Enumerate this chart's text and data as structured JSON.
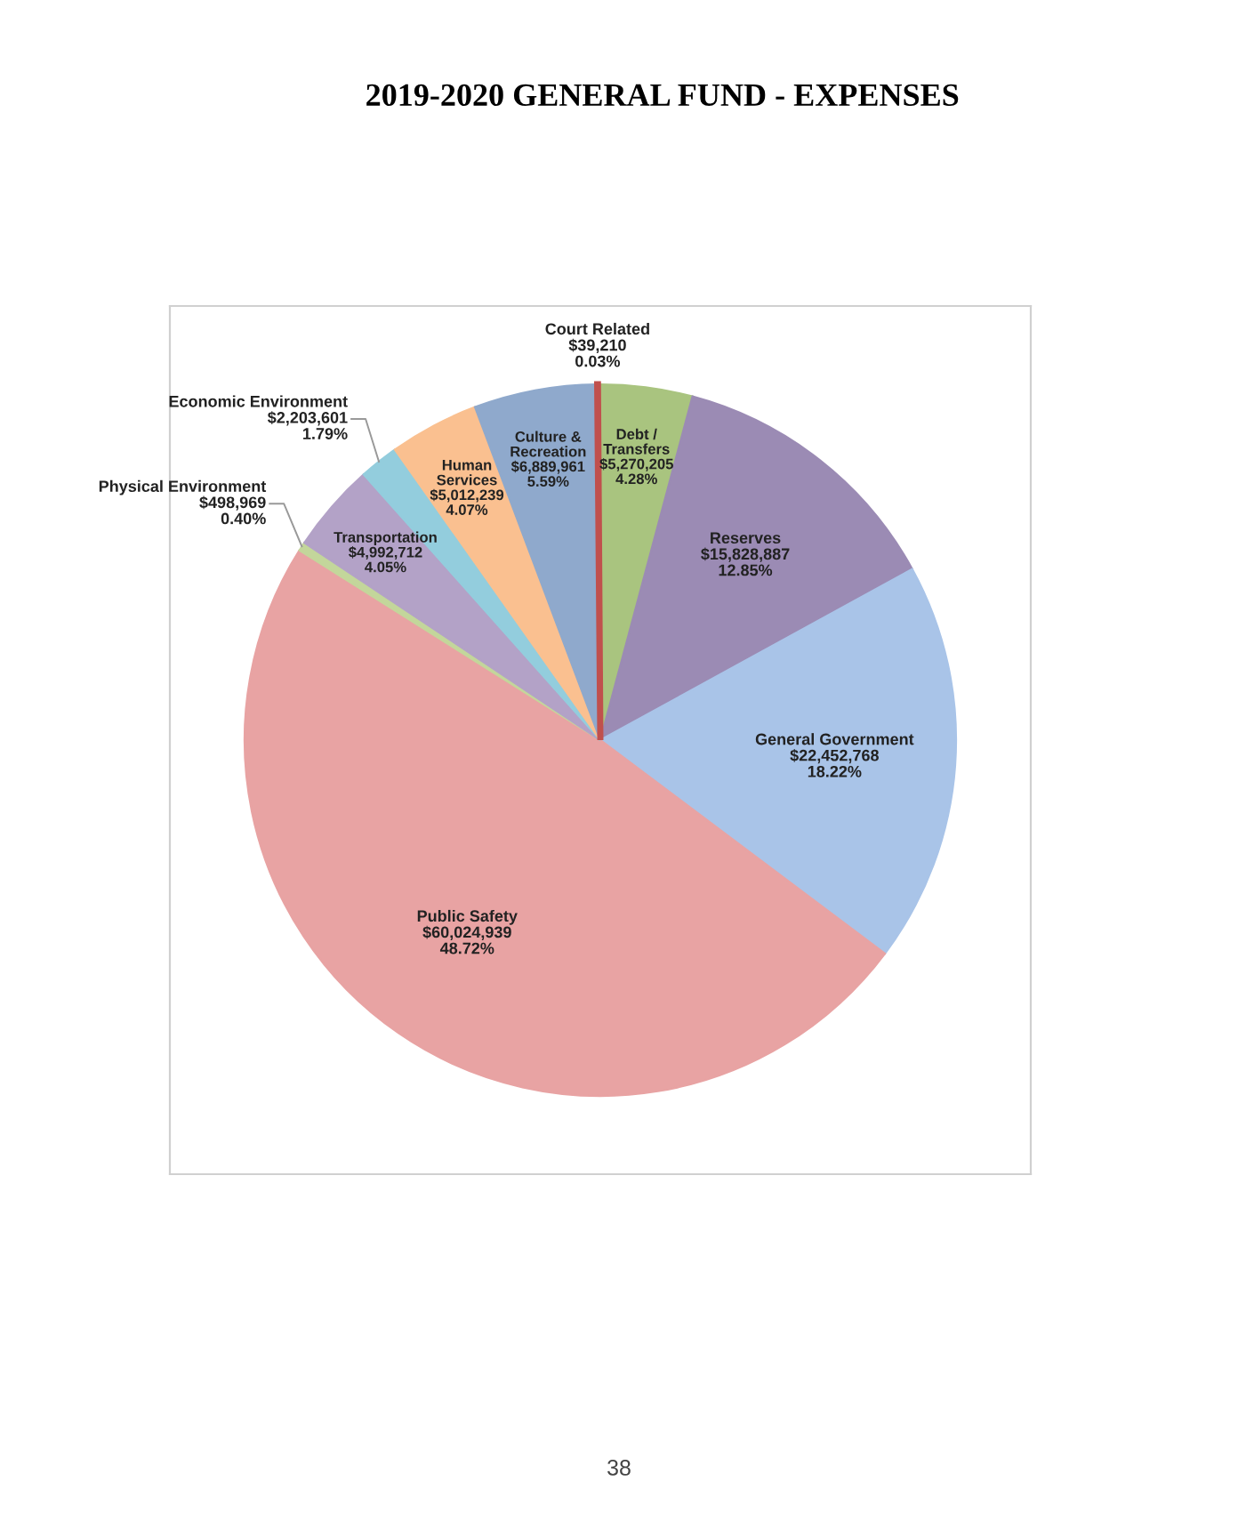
{
  "chart_data": {
    "type": "pie",
    "title": "2019-2020 GENERAL FUND - EXPENSES",
    "categories": [
      "Court Related",
      "Debt /\nTransfers",
      "Reserves",
      "General Government",
      "Public Safety",
      "Physical Environment",
      "Transportation",
      "Economic Environment",
      "Human\nServices",
      "Culture &\nRecreation"
    ],
    "values": [
      39210,
      5270205,
      15828887,
      22452768,
      60024939,
      498969,
      4992712,
      2203601,
      5012239,
      6889961
    ],
    "value_labels": [
      "$39,210\n0.03%",
      "$5,270,205\n4.28%",
      "$15,828,887\n12.85%",
      "$22,452,768\n18.22%",
      "$60,024,939\n48.72%",
      "$498,969\n0.40%",
      "$4,992,712\n4.05%",
      "$2,203,601\n1.79%",
      "$5,012,239\n4.07%",
      "$6,889,961\n5.59%"
    ],
    "colors": [
      "#c0504d",
      "#a9c47f",
      "#9b8bb4",
      "#a9c4e8",
      "#e8a3a3",
      "#c3d69b",
      "#b3a2c7",
      "#93cddd",
      "#fac090",
      "#8fa9cc"
    ],
    "annotations": [
      "38"
    ],
    "legend": false
  }
}
